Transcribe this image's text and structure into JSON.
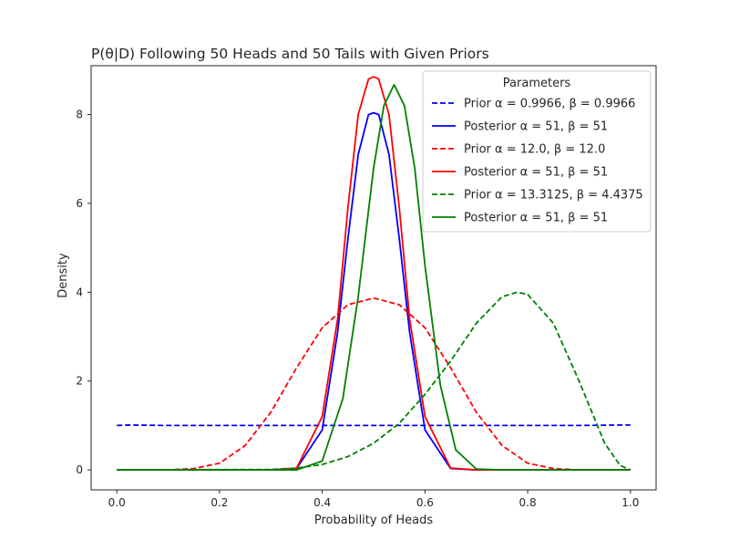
{
  "chart_data": {
    "type": "line",
    "title": "P(θ|D) Following 50 Heads and 50 Tails with Given Priors",
    "xlabel": "Probability of Heads",
    "ylabel": "Density",
    "xlim": [
      -0.05,
      1.05
    ],
    "ylim": [
      -0.45,
      9.1
    ],
    "xticks": [
      0.0,
      0.2,
      0.4,
      0.6,
      0.8,
      1.0
    ],
    "xtick_labels": [
      "0.0",
      "0.2",
      "0.4",
      "0.6",
      "0.8",
      "1.0"
    ],
    "yticks": [
      0,
      2,
      4,
      6,
      8
    ],
    "ytick_labels": [
      "0",
      "2",
      "4",
      "6",
      "8"
    ],
    "grid": false,
    "legend": {
      "title": "Parameters",
      "placement": "top-right"
    },
    "series": [
      {
        "name": "Prior α = 0.9966, β = 0.9966",
        "color": "#0000ff",
        "dash": true,
        "x": [
          0.0,
          0.02,
          0.1,
          0.3,
          0.5,
          0.7,
          0.9,
          0.98,
          1.0
        ],
        "y": [
          1.0,
          1.01,
          1.0,
          1.0,
          1.0,
          1.0,
          1.0,
          1.01,
          1.01
        ]
      },
      {
        "name": "Posterior α = 51, β = 51",
        "color": "#0000ff",
        "dash": false,
        "x": [
          0.0,
          0.3,
          0.35,
          0.4,
          0.43,
          0.45,
          0.47,
          0.49,
          0.5,
          0.51,
          0.53,
          0.55,
          0.57,
          0.6,
          0.65,
          0.7,
          1.0
        ],
        "y": [
          0,
          0,
          0.03,
          0.9,
          3.1,
          5.2,
          7.1,
          8.0,
          8.04,
          8.0,
          7.1,
          5.2,
          3.1,
          0.9,
          0.03,
          0,
          0
        ]
      },
      {
        "name": "Prior α = 12.0, β = 12.0",
        "color": "#ff0000",
        "dash": true,
        "x": [
          0.0,
          0.1,
          0.15,
          0.2,
          0.25,
          0.3,
          0.35,
          0.4,
          0.45,
          0.5,
          0.55,
          0.6,
          0.65,
          0.7,
          0.75,
          0.8,
          0.85,
          0.9,
          1.0
        ],
        "y": [
          0,
          0,
          0.03,
          0.15,
          0.55,
          1.3,
          2.3,
          3.2,
          3.72,
          3.87,
          3.72,
          3.2,
          2.3,
          1.3,
          0.55,
          0.15,
          0.03,
          0,
          0
        ]
      },
      {
        "name": "Posterior α = 51, β = 51",
        "color": "#ff0000",
        "dash": false,
        "x": [
          0.0,
          0.3,
          0.35,
          0.4,
          0.43,
          0.45,
          0.47,
          0.49,
          0.5,
          0.51,
          0.53,
          0.55,
          0.57,
          0.6,
          0.65,
          0.7,
          1.0
        ],
        "y": [
          0,
          0,
          0.04,
          1.2,
          3.4,
          5.9,
          8.0,
          8.8,
          8.85,
          8.8,
          8.0,
          5.9,
          3.4,
          1.2,
          0.04,
          0,
          0
        ]
      },
      {
        "name": "Prior α = 13.3125, β = 4.4375",
        "color": "#008000",
        "dash": true,
        "x": [
          0.0,
          0.3,
          0.35,
          0.4,
          0.45,
          0.5,
          0.55,
          0.6,
          0.65,
          0.7,
          0.75,
          0.78,
          0.8,
          0.85,
          0.9,
          0.95,
          0.98,
          1.0
        ],
        "y": [
          0,
          0.01,
          0.04,
          0.12,
          0.3,
          0.6,
          1.05,
          1.7,
          2.45,
          3.3,
          3.9,
          4.0,
          3.95,
          3.3,
          2.0,
          0.6,
          0.1,
          0
        ]
      },
      {
        "name": "Posterior α = 51, β = 51",
        "color": "#008000",
        "dash": false,
        "x": [
          0.0,
          0.35,
          0.4,
          0.44,
          0.47,
          0.5,
          0.52,
          0.54,
          0.56,
          0.58,
          0.6,
          0.63,
          0.66,
          0.7,
          0.75,
          1.0
        ],
        "y": [
          0,
          0,
          0.2,
          1.6,
          3.9,
          6.8,
          8.2,
          8.67,
          8.2,
          6.8,
          4.6,
          1.9,
          0.45,
          0.02,
          0,
          0
        ]
      }
    ]
  }
}
